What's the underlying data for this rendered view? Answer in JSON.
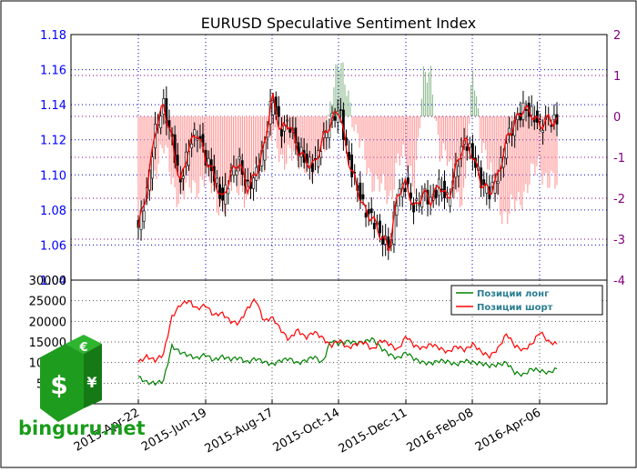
{
  "chart_data": [
    {
      "type": "candlestick",
      "title": "EURUSD Speculative Sentiment Index",
      "left_axis": {
        "ylim": [
          1.04,
          1.18
        ],
        "ticks": [
          "1.04",
          "1.06",
          "1.08",
          "1.10",
          "1.12",
          "1.14",
          "1.16",
          "1.18"
        ],
        "color": "#0000ff"
      },
      "right_axis": {
        "ylim": [
          -4,
          2
        ],
        "ticks": [
          "-4",
          "-3",
          "-2",
          "-1",
          "0",
          "1",
          "2"
        ],
        "color": "#800080"
      },
      "price_line_color": "#ff0000",
      "candle_color": "#000000",
      "ssi_negative_color": "#ff9999",
      "ssi_positive_color": "#8fbc8f",
      "grid": true,
      "price_series_x": [
        0.0,
        0.02,
        0.04,
        0.06,
        0.08,
        0.1,
        0.12,
        0.14,
        0.16,
        0.18,
        0.2,
        0.22,
        0.24,
        0.26,
        0.28,
        0.3,
        0.32,
        0.34,
        0.36,
        0.38,
        0.4,
        0.42,
        0.44,
        0.46,
        0.48,
        0.5,
        0.52,
        0.54,
        0.56,
        0.58,
        0.6,
        0.62,
        0.64,
        0.66,
        0.68,
        0.7,
        0.72,
        0.74,
        0.76,
        0.78,
        0.8,
        0.82,
        0.84,
        0.86,
        0.88,
        0.9,
        0.92,
        0.94,
        0.96,
        0.98,
        1.0
      ],
      "price_values": [
        1.07,
        1.09,
        1.125,
        1.14,
        1.12,
        1.095,
        1.115,
        1.125,
        1.11,
        1.1,
        1.085,
        1.1,
        1.108,
        1.092,
        1.1,
        1.115,
        1.145,
        1.125,
        1.13,
        1.115,
        1.108,
        1.105,
        1.12,
        1.13,
        1.138,
        1.11,
        1.095,
        1.08,
        1.075,
        1.065,
        1.058,
        1.09,
        1.095,
        1.08,
        1.09,
        1.085,
        1.095,
        1.085,
        1.105,
        1.12,
        1.11,
        1.095,
        1.09,
        1.1,
        1.12,
        1.13,
        1.138,
        1.135,
        1.128,
        1.132,
        1.13
      ],
      "ssi_values": [
        -2.5,
        -2.0,
        -1.2,
        -0.8,
        -1.5,
        -2.0,
        -1.8,
        -1.6,
        -1.5,
        -1.9,
        -2.2,
        -1.8,
        -1.6,
        -2.0,
        -1.5,
        -1.0,
        -0.5,
        -1.0,
        -0.8,
        -1.2,
        -1.0,
        -1.5,
        -1.0,
        0.5,
        1.2,
        0.8,
        -0.5,
        -1.0,
        -1.5,
        -1.8,
        -2.0,
        -1.0,
        -1.2,
        -1.5,
        0.8,
        1.0,
        -0.8,
        -1.2,
        -1.8,
        -2.0,
        1.2,
        -0.5,
        -1.5,
        -2.0,
        -2.5,
        -2.2,
        -1.8,
        -1.5,
        -1.2,
        -1.5,
        -1.8
      ]
    },
    {
      "type": "line",
      "ylim": [
        0,
        30000
      ],
      "y_ticks": [
        "5000",
        "10000",
        "15000",
        "20000",
        "25000",
        "30000"
      ],
      "x_tick_labels": [
        "2015-Apr-22",
        "2015-Jun-19",
        "2015-Aug-17",
        "2015-Oct-14",
        "2015-Dec-11",
        "2016-Feb-08",
        "2016-Apr-06"
      ],
      "grid": true,
      "legend_position": "top-right",
      "series": [
        {
          "name": "Позиции лонг",
          "color": "#008000",
          "values": [
            6500,
            5200,
            5000,
            5500,
            14000,
            12500,
            11800,
            11000,
            12000,
            10500,
            11500,
            10800,
            11200,
            10000,
            11000,
            10200,
            9500,
            10500,
            11000,
            9800,
            10500,
            11500,
            9800,
            15500,
            14500,
            15200,
            14800,
            15000,
            15800,
            13500,
            12000,
            11000,
            12500,
            10800,
            10000,
            9800,
            10500,
            10200,
            9500,
            10500,
            10000,
            9800,
            9200,
            9500,
            10000,
            7500,
            7000,
            8500,
            8000,
            7500,
            8500
          ]
        },
        {
          "name": "Позиции шорт",
          "color": "#ff0000",
          "values": [
            10000,
            11500,
            10500,
            12000,
            21000,
            24000,
            25000,
            23000,
            24000,
            21500,
            22000,
            20000,
            19500,
            23000,
            25500,
            20000,
            21000,
            18000,
            15500,
            18000,
            16000,
            17500,
            16000,
            14000,
            15500,
            13500,
            14500,
            15000,
            13000,
            15500,
            14500,
            13000,
            16500,
            14000,
            13500,
            14500,
            13500,
            12500,
            14000,
            13000,
            14500,
            12500,
            11500,
            13500,
            17000,
            14000,
            13000,
            14500,
            17500,
            15000,
            14500
          ]
        }
      ]
    }
  ],
  "logo": {
    "text": "binguru.net",
    "symbols": [
      "€",
      "$",
      "¥"
    ],
    "color": "#1a9c1a"
  }
}
